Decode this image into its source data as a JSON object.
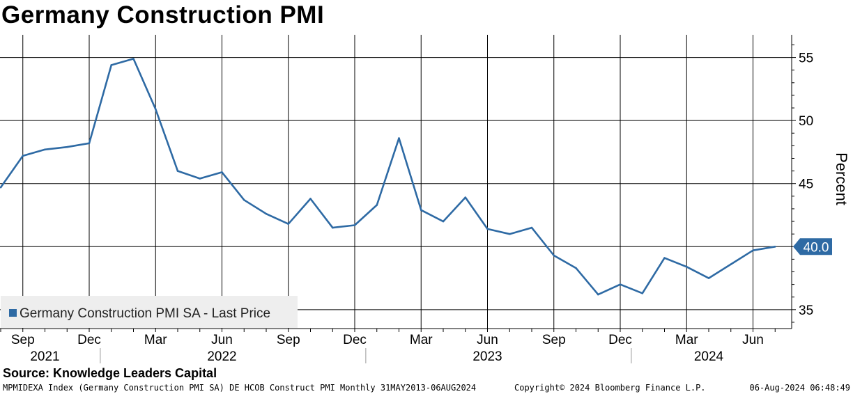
{
  "chart_data": {
    "type": "line",
    "title": "Germany Construction PMI",
    "ylabel": "Percent",
    "ylim": [
      33.5,
      56.8
    ],
    "yticks": [
      35,
      40,
      45,
      50,
      55
    ],
    "grid": true,
    "legend_position": "bottom-left",
    "month_ticks": [
      {
        "date": "2021-09",
        "label": "Sep"
      },
      {
        "date": "2021-12",
        "label": "Dec"
      },
      {
        "date": "2022-03",
        "label": "Mar"
      },
      {
        "date": "2022-06",
        "label": "Jun"
      },
      {
        "date": "2022-09",
        "label": "Sep"
      },
      {
        "date": "2022-12",
        "label": "Dec"
      },
      {
        "date": "2023-03",
        "label": "Mar"
      },
      {
        "date": "2023-06",
        "label": "Jun"
      },
      {
        "date": "2023-09",
        "label": "Sep"
      },
      {
        "date": "2023-12",
        "label": "Dec"
      },
      {
        "date": "2024-03",
        "label": "Mar"
      },
      {
        "date": "2024-06",
        "label": "Jun"
      }
    ],
    "year_labels": [
      {
        "date": "2021-10",
        "label": "2021"
      },
      {
        "date": "2022-06",
        "label": "2022"
      },
      {
        "date": "2023-06",
        "label": "2023"
      },
      {
        "date": "2024-04",
        "label": "2024"
      }
    ],
    "year_separators": [
      "2022-01",
      "2023-01",
      "2024-01"
    ],
    "x": [
      "2021-08",
      "2021-09",
      "2021-10",
      "2021-11",
      "2021-12",
      "2022-01",
      "2022-02",
      "2022-03",
      "2022-04",
      "2022-05",
      "2022-06",
      "2022-07",
      "2022-08",
      "2022-09",
      "2022-10",
      "2022-11",
      "2022-12",
      "2023-01",
      "2023-02",
      "2023-03",
      "2023-04",
      "2023-05",
      "2023-06",
      "2023-07",
      "2023-08",
      "2023-09",
      "2023-10",
      "2023-11",
      "2023-12",
      "2024-01",
      "2024-02",
      "2024-03",
      "2024-04",
      "2024-05",
      "2024-06",
      "2024-07"
    ],
    "series": [
      {
        "name": "Germany Construction PMI SA - Last Price",
        "color": "#2e6aa4",
        "values": [
          44.7,
          47.2,
          47.7,
          47.9,
          48.2,
          54.4,
          54.9,
          50.9,
          46.0,
          45.4,
          45.9,
          43.7,
          42.6,
          41.8,
          43.8,
          41.5,
          41.7,
          43.3,
          48.6,
          42.9,
          42.0,
          43.9,
          41.4,
          41.0,
          41.5,
          39.3,
          38.3,
          36.2,
          37.0,
          36.3,
          39.1,
          38.4,
          37.5,
          38.6,
          39.7,
          40.0
        ]
      }
    ],
    "last_value_label": "40.0"
  },
  "source": "Source: Knowledge Leaders Capital",
  "footer": {
    "left": "MPMIDEXA Index (Germany Construction PMI SA) DE HCOB Construct PMI  Monthly 31MAY2013-06AUG2024",
    "middle": "Copyright© 2024 Bloomberg Finance L.P.",
    "right": "06-Aug-2024 06:48:49"
  },
  "colors": {
    "line": "#2e6aa4",
    "last_value_box": "#2e6aa4",
    "legend_bg": "#eeeeee"
  }
}
